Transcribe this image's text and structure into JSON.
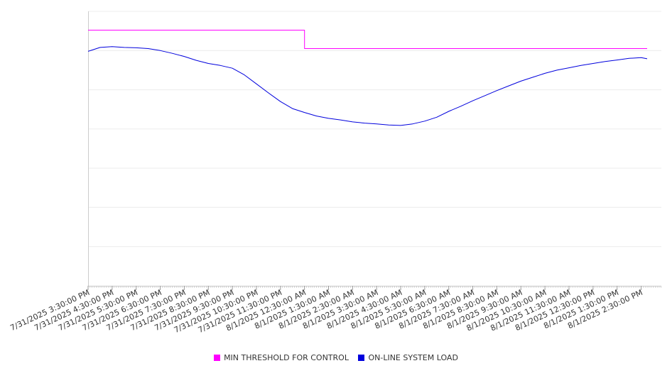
{
  "chart_data": {
    "type": "line",
    "x_tick_labels": [
      "7/31/2025 3:30:00 PM",
      "7/31/2025 4:30:00 PM",
      "7/31/2025 5:30:00 PM",
      "7/31/2025 6:30:00 PM",
      "7/31/2025 7:30:00 PM",
      "7/31/2025 8:30:00 PM",
      "7/31/2025 9:30:00 PM",
      "7/31/2025 10:30:00 PM",
      "7/31/2025 11:30:00 PM",
      "8/1/2025 12:30:00 AM",
      "8/1/2025 1:30:00 AM",
      "8/1/2025 2:30:00 AM",
      "8/1/2025 3:30:00 AM",
      "8/1/2025 4:30:00 AM",
      "8/1/2025 5:30:00 AM",
      "8/1/2025 6:30:00 AM",
      "8/1/2025 7:30:00 AM",
      "8/1/2025 8:30:00 AM",
      "8/1/2025 9:30:00 AM",
      "8/1/2025 10:30:00 AM",
      "8/1/2025 11:30:00 AM",
      "8/1/2025 12:30:00 PM",
      "8/1/2025 1:30:00 PM",
      "8/1/2025 2:30:00 PM"
    ],
    "ylim": [
      0,
      7
    ],
    "y_ticks_labeled": false,
    "grid": true,
    "legend_position": "bottom",
    "series": [
      {
        "name": "MIN THRESHOLD FOR CONTROL",
        "color": "#ff00ff",
        "points": [
          [
            "7/31/2025 3:30:00 PM",
            6.52
          ],
          [
            "8/1/2025 12:30:00 AM",
            6.52
          ],
          [
            "8/1/2025 12:30:00 AM",
            6.05
          ],
          [
            "8/1/2025 2:45:00 PM",
            6.05
          ]
        ]
      },
      {
        "name": "ON-LINE SYSTEM LOAD",
        "color": "#0000dd",
        "points": [
          [
            "7/31/2025 3:30:00 PM",
            5.98
          ],
          [
            "7/31/2025 4:00:00 PM",
            6.08
          ],
          [
            "7/31/2025 4:30:00 PM",
            6.1
          ],
          [
            "7/31/2025 5:00:00 PM",
            6.08
          ],
          [
            "7/31/2025 5:30:00 PM",
            6.07
          ],
          [
            "7/31/2025 6:00:00 PM",
            6.05
          ],
          [
            "7/31/2025 6:30:00 PM",
            6.0
          ],
          [
            "7/31/2025 7:00:00 PM",
            5.93
          ],
          [
            "7/31/2025 7:30:00 PM",
            5.85
          ],
          [
            "7/31/2025 8:00:00 PM",
            5.75
          ],
          [
            "7/31/2025 8:30:00 PM",
            5.67
          ],
          [
            "7/31/2025 9:00:00 PM",
            5.62
          ],
          [
            "7/31/2025 9:30:00 PM",
            5.55
          ],
          [
            "7/31/2025 10:00:00 PM",
            5.38
          ],
          [
            "7/31/2025 10:30:00 PM",
            5.15
          ],
          [
            "7/31/2025 11:00:00 PM",
            4.92
          ],
          [
            "7/31/2025 11:30:00 PM",
            4.7
          ],
          [
            "8/1/2025 12:00:00 AM",
            4.52
          ],
          [
            "8/1/2025 12:30:00 AM",
            4.42
          ],
          [
            "8/1/2025 1:00:00 AM",
            4.33
          ],
          [
            "8/1/2025 1:30:00 AM",
            4.27
          ],
          [
            "8/1/2025 2:00:00 AM",
            4.23
          ],
          [
            "8/1/2025 2:30:00 AM",
            4.18
          ],
          [
            "8/1/2025 3:00:00 AM",
            4.15
          ],
          [
            "8/1/2025 3:30:00 AM",
            4.13
          ],
          [
            "8/1/2025 4:00:00 AM",
            4.1
          ],
          [
            "8/1/2025 4:30:00 AM",
            4.09
          ],
          [
            "8/1/2025 5:00:00 AM",
            4.13
          ],
          [
            "8/1/2025 5:30:00 AM",
            4.2
          ],
          [
            "8/1/2025 6:00:00 AM",
            4.3
          ],
          [
            "8/1/2025 6:30:00 AM",
            4.45
          ],
          [
            "8/1/2025 7:00:00 AM",
            4.58
          ],
          [
            "8/1/2025 7:30:00 AM",
            4.72
          ],
          [
            "8/1/2025 8:00:00 AM",
            4.85
          ],
          [
            "8/1/2025 8:30:00 AM",
            4.98
          ],
          [
            "8/1/2025 9:00:00 AM",
            5.1
          ],
          [
            "8/1/2025 9:30:00 AM",
            5.22
          ],
          [
            "8/1/2025 10:00:00 AM",
            5.32
          ],
          [
            "8/1/2025 10:30:00 AM",
            5.42
          ],
          [
            "8/1/2025 11:00:00 AM",
            5.5
          ],
          [
            "8/1/2025 11:30:00 AM",
            5.56
          ],
          [
            "8/1/2025 12:00:00 PM",
            5.62
          ],
          [
            "8/1/2025 12:30:00 PM",
            5.67
          ],
          [
            "8/1/2025 1:00:00 PM",
            5.72
          ],
          [
            "8/1/2025 1:30:00 PM",
            5.76
          ],
          [
            "8/1/2025 2:00:00 PM",
            5.8
          ],
          [
            "8/1/2025 2:30:00 PM",
            5.82
          ],
          [
            "8/1/2025 2:45:00 PM",
            5.79
          ]
        ]
      }
    ]
  }
}
